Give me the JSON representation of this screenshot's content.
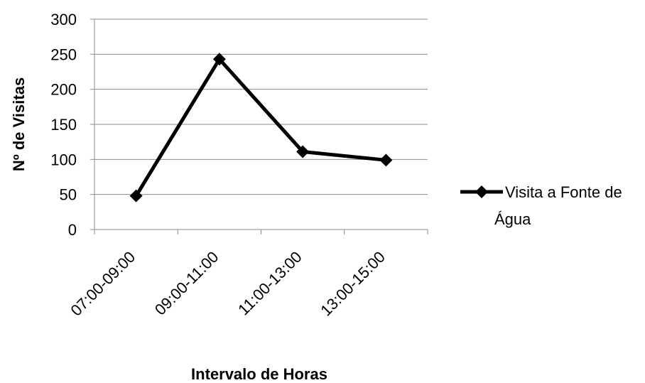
{
  "chart_data": {
    "type": "line",
    "categories": [
      "07:00-09:00",
      "09:00-11:00",
      "11:00-13:00",
      "13:00-15:00"
    ],
    "series": [
      {
        "name": "Visita a Fonte de Água",
        "values": [
          48,
          243,
          111,
          99
        ],
        "color": "#000000",
        "marker": "diamond"
      }
    ],
    "xlabel": "Intervalo de Horas",
    "ylabel": "Nº de Visitas",
    "ylim": [
      0,
      300
    ],
    "yticks": [
      0,
      50,
      100,
      150,
      200,
      250,
      300
    ],
    "grid": true,
    "legend": "right"
  },
  "legend": {
    "line1": "Visita a Fonte de",
    "line2": "Água"
  }
}
